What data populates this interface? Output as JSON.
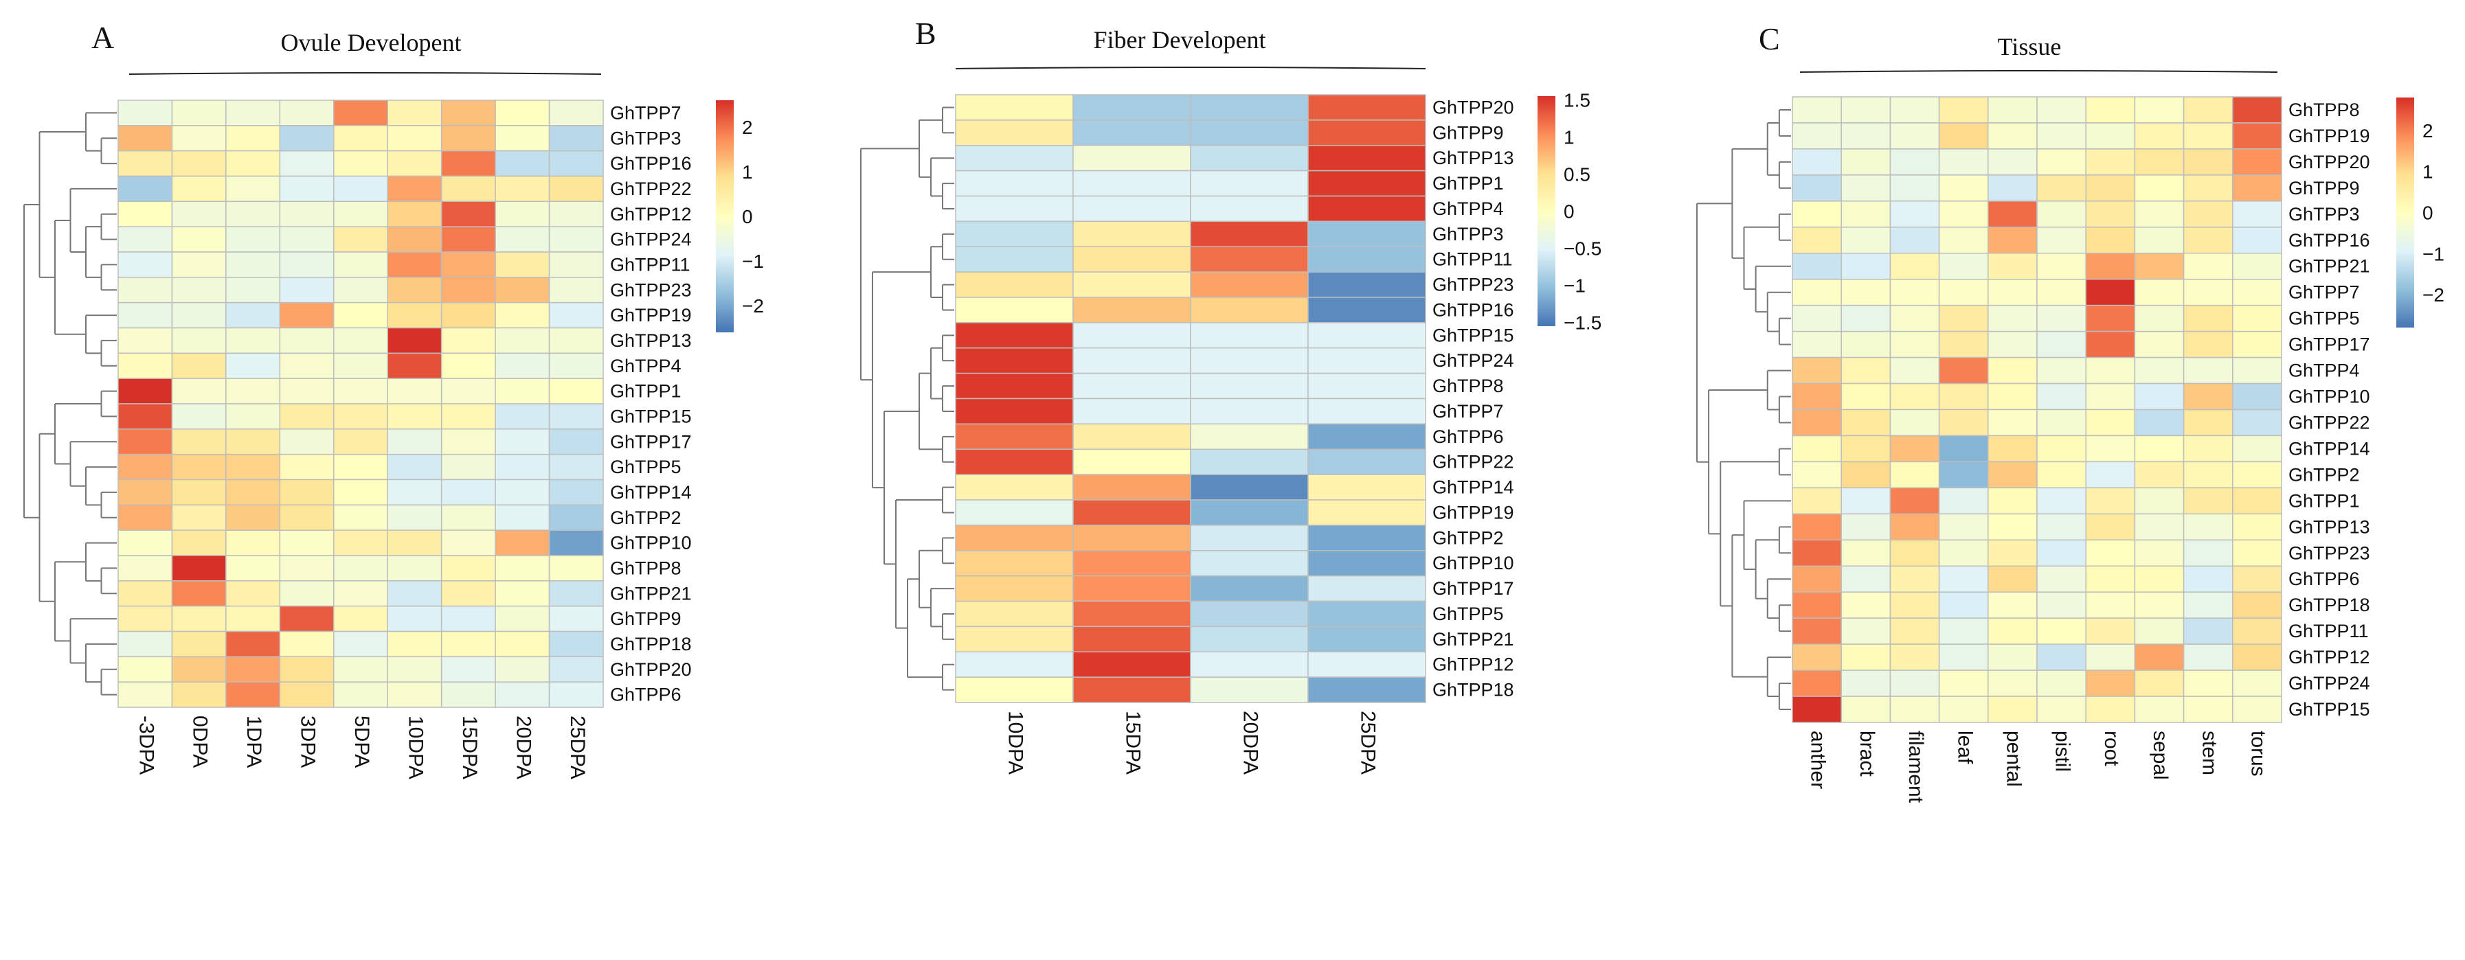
{
  "colors": {
    "palette": [
      "#4575B4",
      "#91BFDB",
      "#E0F3F8",
      "#FFFFBF",
      "#FEE090",
      "#FC8D59",
      "#D73027"
    ],
    "grid": "#bdbdbd",
    "dendrogram": "#777777"
  },
  "chart_data": [
    {
      "type": "heatmap",
      "panel": "A",
      "title": "Ovule Developent",
      "columns": [
        "-3DPA",
        "0DPA",
        "1DPA",
        "3DPA",
        "5DPA",
        "10DPA",
        "15DPA",
        "20DPA",
        "25DPA"
      ],
      "rows": [
        "GhTPP7",
        "GhTPP3",
        "GhTPP16",
        "GhTPP22",
        "GhTPP12",
        "GhTPP24",
        "GhTPP11",
        "GhTPP23",
        "GhTPP19",
        "GhTPP13",
        "GhTPP4",
        "GhTPP1",
        "GhTPP15",
        "GhTPP17",
        "GhTPP5",
        "GhTPP14",
        "GhTPP2",
        "GhTPP10",
        "GhTPP8",
        "GhTPP21",
        "GhTPP9",
        "GhTPP18",
        "GhTPP20",
        "GhTPP6"
      ],
      "values": [
        [
          -0.5,
          -0.3,
          -0.4,
          -0.4,
          1.8,
          0.3,
          1.2,
          0,
          -0.4
        ],
        [
          1.3,
          -0.2,
          0.1,
          -1.3,
          0.2,
          0.1,
          1.2,
          -0.1,
          -1.3
        ],
        [
          0.5,
          0.5,
          0.2,
          -0.7,
          0.1,
          0.3,
          1.9,
          -1.2,
          -1.2
        ],
        [
          -1.5,
          0.2,
          -0.2,
          -0.8,
          -0.9,
          1.5,
          0.6,
          0.4,
          0.7
        ],
        [
          0,
          -0.4,
          -0.4,
          -0.4,
          -0.3,
          1.0,
          2.2,
          -0.3,
          -0.4
        ],
        [
          -0.6,
          -0.1,
          -0.5,
          -0.5,
          0.5,
          1.3,
          1.9,
          -0.5,
          -0.5
        ],
        [
          -0.8,
          -0.2,
          -0.5,
          -0.6,
          -0.3,
          1.7,
          1.4,
          0.5,
          -0.4
        ],
        [
          -0.4,
          -0.4,
          -0.5,
          -0.9,
          -0.4,
          1.1,
          1.4,
          1.2,
          -0.4
        ],
        [
          -0.6,
          -0.5,
          -1.0,
          1.5,
          0,
          0.8,
          0.9,
          0.1,
          -0.9
        ],
        [
          -0.2,
          -0.3,
          -0.3,
          -0.3,
          -0.3,
          2.6,
          0.1,
          -0.3,
          -0.3
        ],
        [
          0.1,
          0.6,
          -0.8,
          -0.2,
          -0.3,
          2.3,
          0,
          -0.6,
          -0.5
        ],
        [
          2.6,
          -0.2,
          -0.2,
          -0.2,
          -0.2,
          -0.2,
          -0.2,
          -0.1,
          0
        ],
        [
          2.3,
          -0.5,
          -0.3,
          0.5,
          0.4,
          0.2,
          0.2,
          -1.0,
          -1.0
        ],
        [
          1.9,
          0.6,
          0.6,
          -0.4,
          0.5,
          -0.6,
          -0.2,
          -0.8,
          -1.2
        ],
        [
          1.4,
          1.0,
          1.0,
          0.1,
          0,
          -1.0,
          -0.4,
          -0.9,
          -1.0
        ],
        [
          1.2,
          0.7,
          1.0,
          0.7,
          0,
          -0.8,
          -0.9,
          -0.8,
          -1.2
        ],
        [
          1.4,
          0.4,
          1.1,
          0.7,
          -0.1,
          -0.5,
          -0.3,
          -0.8,
          -1.5
        ],
        [
          -0.1,
          0.6,
          0.1,
          -0.1,
          0.4,
          0.5,
          -0.2,
          1.4,
          -2.1
        ],
        [
          -0.2,
          2.6,
          -0.1,
          -0.2,
          -0.3,
          -0.3,
          0.2,
          -0.1,
          -0.1
        ],
        [
          0.5,
          1.8,
          0.4,
          -0.3,
          -0.2,
          -1.0,
          0.4,
          -0.1,
          -1.1
        ],
        [
          0.4,
          0.3,
          0.2,
          2.2,
          0.2,
          -0.9,
          -0.9,
          -0.3,
          -0.8
        ],
        [
          -0.6,
          0.6,
          2.1,
          0.1,
          -0.7,
          0.1,
          0.1,
          0.1,
          -1.2
        ],
        [
          -0.1,
          1.1,
          1.5,
          0.8,
          -0.3,
          -0.3,
          -0.7,
          -0.4,
          -1.0
        ],
        [
          -0.2,
          0.7,
          1.8,
          0.8,
          -0.3,
          -0.2,
          -0.5,
          -0.7,
          -0.8
        ]
      ],
      "color_range": [
        -2.6,
        2.6
      ],
      "legend_ticks": [
        {
          "value": 2,
          "label": "2"
        },
        {
          "value": 1,
          "label": "1"
        },
        {
          "value": 0,
          "label": "0"
        },
        {
          "value": -1,
          "label": "−1"
        },
        {
          "value": -2,
          "label": "−2"
        }
      ],
      "row_tree": [
        [
          [
            0,
            [
              1,
              2
            ]
          ],
          [
            [
              3,
              [
                [
                  4,
                  5
                ],
                [
                  6,
                  7
                ]
              ]
            ],
            [
              8,
              [
                9,
                10
              ]
            ]
          ]
        ],
        [
          [
            [
              11,
              12
            ],
            [
              13,
              [
                14,
                [
                  15,
                  16
                ]
              ]
            ]
          ],
          [
            [
              17,
              [
                18,
                19
              ]
            ],
            [
              20,
              [
                21,
                [
                  22,
                  23
                ]
              ]
            ]
          ]
        ]
      ]
    },
    {
      "type": "heatmap",
      "panel": "B",
      "title": "Fiber Developent",
      "columns": [
        "10DPA",
        "15DPA",
        "20DPA",
        "25DPA"
      ],
      "rows": [
        "GhTPP20",
        "GhTPP9",
        "GhTPP13",
        "GhTPP1",
        "GhTPP4",
        "GhTPP3",
        "GhTPP11",
        "GhTPP23",
        "GhTPP16",
        "GhTPP15",
        "GhTPP24",
        "GhTPP8",
        "GhTPP7",
        "GhTPP6",
        "GhTPP22",
        "GhTPP14",
        "GhTPP19",
        "GhTPP2",
        "GhTPP10",
        "GhTPP17",
        "GhTPP5",
        "GhTPP21",
        "GhTPP12",
        "GhTPP18"
      ],
      "values": [
        [
          0.1,
          -0.9,
          -0.9,
          1.3
        ],
        [
          0.3,
          -0.9,
          -0.9,
          1.3
        ],
        [
          -0.6,
          -0.2,
          -0.7,
          1.5
        ],
        [
          -0.5,
          -0.5,
          -0.5,
          1.5
        ],
        [
          -0.5,
          -0.5,
          -0.5,
          1.5
        ],
        [
          -0.7,
          0.3,
          1.4,
          -1.0
        ],
        [
          -0.7,
          0.4,
          1.2,
          -1.0
        ],
        [
          0.4,
          0.2,
          0.9,
          -1.4
        ],
        [
          0,
          0.7,
          0.6,
          -1.4
        ],
        [
          1.5,
          -0.5,
          -0.5,
          -0.5
        ],
        [
          1.5,
          -0.5,
          -0.5,
          -0.5
        ],
        [
          1.5,
          -0.5,
          -0.5,
          -0.5
        ],
        [
          1.5,
          -0.5,
          -0.5,
          -0.5
        ],
        [
          1.2,
          0.3,
          -0.2,
          -1.2
        ],
        [
          1.4,
          0,
          -0.7,
          -0.9
        ],
        [
          0.2,
          0.9,
          -1.4,
          0.2
        ],
        [
          -0.4,
          1.3,
          -1.1,
          0.2
        ],
        [
          0.8,
          0.8,
          -0.6,
          -1.2
        ],
        [
          0.6,
          1.0,
          -0.6,
          -1.2
        ],
        [
          0.6,
          1.0,
          -1.1,
          -0.6
        ],
        [
          0.3,
          1.2,
          -0.8,
          -1.0
        ],
        [
          0.3,
          1.3,
          -0.7,
          -1.0
        ],
        [
          -0.5,
          1.5,
          -0.5,
          -0.5
        ],
        [
          0,
          1.3,
          -0.3,
          -1.2
        ]
      ],
      "color_range": [
        -1.55,
        1.55
      ],
      "legend_ticks": [
        {
          "value": 1.5,
          "label": "1.5"
        },
        {
          "value": 1,
          "label": "1"
        },
        {
          "value": 0.5,
          "label": "0.5"
        },
        {
          "value": 0,
          "label": "0"
        },
        {
          "value": -0.5,
          "label": "−0.5"
        },
        {
          "value": -1,
          "label": "−1"
        },
        {
          "value": -1.5,
          "label": "−1.5"
        }
      ],
      "row_tree": [
        [
          [
            0,
            1
          ],
          [
            2,
            [
              3,
              4
            ]
          ]
        ],
        [
          [
            [
              5,
              6
            ],
            [
              7,
              8
            ]
          ],
          [
            [
              [
                [
                  9,
                  10
                ],
                [
                  11,
                  12
                ]
              ],
              [
                13,
                14
              ]
            ],
            [
              [
                15,
                16
              ],
              [
                [
                  [
                    17,
                    18
                  ],
                  [
                    19,
                    [
                      20,
                      21
                    ]
                  ]
                ],
                [
                  22,
                  23
                ]
              ]
            ]
          ]
        ]
      ]
    },
    {
      "type": "heatmap",
      "panel": "C",
      "title": "Tissue",
      "columns": [
        "anther",
        "bract",
        "filament",
        "leaf",
        "pental",
        "pistil",
        "root",
        "sepal",
        "stem",
        "torus"
      ],
      "rows": [
        "GhTPP8",
        "GhTPP19",
        "GhTPP20",
        "GhTPP9",
        "GhTPP3",
        "GhTPP16",
        "GhTPP21",
        "GhTPP7",
        "GhTPP5",
        "GhTPP17",
        "GhTPP4",
        "GhTPP10",
        "GhTPP22",
        "GhTPP14",
        "GhTPP2",
        "GhTPP1",
        "GhTPP13",
        "GhTPP23",
        "GhTPP6",
        "GhTPP18",
        "GhTPP11",
        "GhTPP12",
        "GhTPP24",
        "GhTPP15"
      ],
      "values": [
        [
          -0.4,
          -0.4,
          -0.4,
          0.5,
          -0.3,
          -0.4,
          0.1,
          -0.1,
          0.5,
          2.5
        ],
        [
          -0.5,
          -0.5,
          -0.4,
          1.0,
          -0.2,
          -0.4,
          -0.3,
          0.3,
          0.3,
          2.2
        ],
        [
          -1.0,
          -0.3,
          -0.7,
          -0.5,
          -0.5,
          -0.1,
          0.4,
          0.7,
          0.8,
          1.8
        ],
        [
          -1.3,
          -0.5,
          -0.7,
          -0.1,
          -1.1,
          0.6,
          0.8,
          0,
          0.5,
          1.5
        ],
        [
          0,
          -0.2,
          -0.9,
          -0.1,
          2.2,
          -0.3,
          0.6,
          -0.2,
          0.6,
          -0.9
        ],
        [
          0.5,
          -0.4,
          -1.1,
          -0.2,
          1.5,
          -0.4,
          0.9,
          -0.3,
          0.6,
          -1.0
        ],
        [
          -1.2,
          -1.0,
          0.3,
          -0.5,
          0.4,
          -0.1,
          1.7,
          1.3,
          -0.1,
          -0.3
        ],
        [
          -0.1,
          -0.1,
          -0.1,
          -0.1,
          -0.1,
          -0.1,
          2.8,
          -0.1,
          -0.1,
          -0.1
        ],
        [
          -0.5,
          -0.7,
          -0.2,
          0.6,
          -0.4,
          -0.5,
          2.1,
          -0.3,
          0.7,
          0.1
        ],
        [
          -0.4,
          -0.3,
          -0.2,
          0.6,
          -0.4,
          -0.7,
          2.2,
          -0.2,
          0.7,
          0.1
        ],
        [
          1.2,
          0.3,
          -0.4,
          2.0,
          0.1,
          -0.4,
          -0.2,
          -0.4,
          -0.4,
          -0.4
        ],
        [
          1.5,
          0.1,
          0.3,
          0.5,
          0.1,
          -0.8,
          -0.2,
          -1.0,
          1.2,
          -1.4
        ],
        [
          1.5,
          0.7,
          -0.3,
          0.6,
          -0.1,
          -0.3,
          0.1,
          -1.3,
          0.7,
          -1.2
        ],
        [
          0.1,
          0.7,
          1.3,
          -2.0,
          0.9,
          0.1,
          -0.1,
          0,
          0.2,
          -0.3
        ],
        [
          -0.1,
          1.0,
          0.1,
          -1.9,
          1.2,
          0.1,
          -0.9,
          0.4,
          0.2,
          0.1
        ],
        [
          0.4,
          -0.9,
          2.0,
          -0.8,
          0.1,
          -0.9,
          0.4,
          -0.3,
          0.6,
          0.7
        ],
        [
          1.8,
          -0.6,
          1.5,
          -0.4,
          0,
          -0.7,
          0.7,
          -0.4,
          -0.4,
          0.1
        ],
        [
          2.2,
          -0.2,
          0.7,
          -0.3,
          0.4,
          -1.0,
          0,
          -0.2,
          -0.7,
          0.1
        ],
        [
          1.6,
          -0.7,
          0.4,
          -0.9,
          1.0,
          -0.5,
          0.1,
          0.1,
          -1.0,
          0.6
        ],
        [
          1.9,
          -0.1,
          0.5,
          -1.0,
          -0.1,
          -0.5,
          -0.1,
          -0.1,
          -0.7,
          1.0
        ],
        [
          2.0,
          -0.4,
          0.5,
          -0.7,
          0.1,
          0,
          0.4,
          -0.3,
          -1.2,
          0.8
        ],
        [
          1.2,
          0.1,
          0.4,
          -0.7,
          -0.3,
          -1.2,
          -0.4,
          1.6,
          -0.7,
          1.0
        ],
        [
          1.9,
          -0.6,
          -0.6,
          -0.1,
          -0.2,
          -0.3,
          1.3,
          0.5,
          -0.1,
          -0.2
        ],
        [
          2.8,
          -0.2,
          -0.2,
          -0.2,
          0.2,
          -0.2,
          0.3,
          -0.2,
          -0.1,
          -0.2
        ]
      ],
      "color_range": [
        -2.8,
        2.8
      ],
      "legend_ticks": [
        {
          "value": 2,
          "label": "2"
        },
        {
          "value": 1,
          "label": "1"
        },
        {
          "value": 0,
          "label": "0"
        },
        {
          "value": -1,
          "label": "−1"
        },
        {
          "value": -2,
          "label": "−2"
        }
      ],
      "row_tree": [
        [
          [
            [
              0,
              1
            ],
            [
              2,
              3
            ]
          ],
          [
            [
              4,
              5
            ],
            [
              6,
              [
                7,
                [
                  8,
                  9
                ]
              ]
            ]
          ]
        ],
        [
          [
            10,
            [
              11,
              12
            ]
          ],
          [
            [
              13,
              14
            ],
            [
              [
                15,
                [
                  [
                    16,
                    17
                  ],
                  [
                    18,
                    [
                      19,
                      20
                    ]
                  ]
                ]
              ],
              [
                21,
                [
                  22,
                  23
                ]
              ]
            ]
          ]
        ]
      ]
    }
  ]
}
